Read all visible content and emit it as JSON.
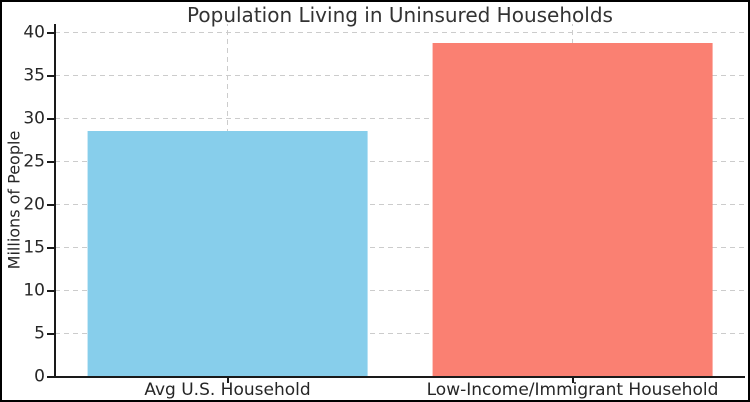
{
  "chart_data": {
    "type": "bar",
    "title": "Population Living in Uninsured Households",
    "xlabel": "",
    "ylabel": "Millions of People",
    "categories": [
      "Avg U.S. Household",
      "Low-Income/Immigrant Household"
    ],
    "values": [
      28.6,
      38.8
    ],
    "bar_colors": [
      "#87CEEB",
      "#FA8072"
    ],
    "yticks": [
      0,
      5,
      10,
      15,
      20,
      25,
      30,
      35,
      40
    ],
    "ylim": [
      0,
      41
    ],
    "grid": true,
    "grid_color": "#cccccc",
    "grid_style": "dashed",
    "legend": "none"
  }
}
